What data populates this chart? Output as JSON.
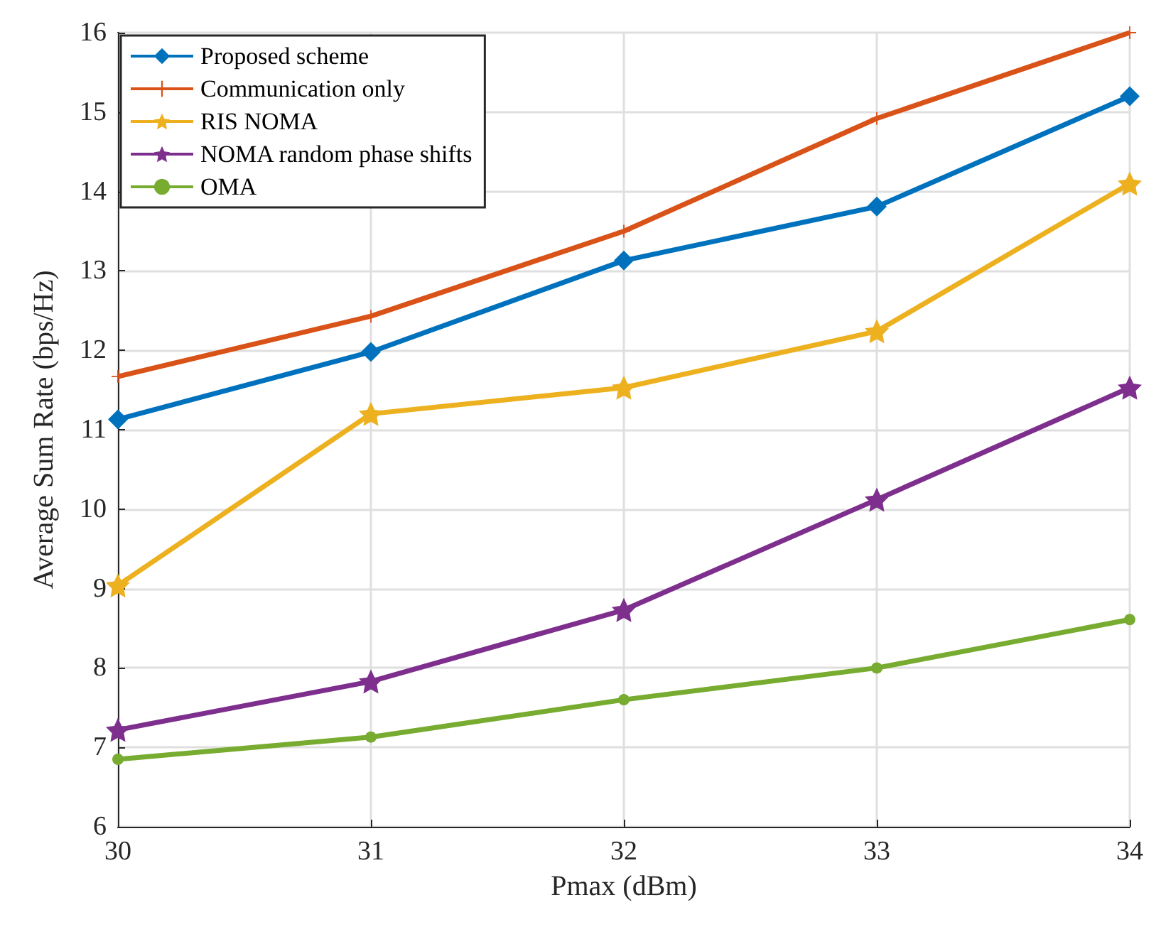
{
  "chart_data": {
    "type": "line",
    "xlabel": "Pmax (dBm)",
    "ylabel": "Average Sum Rate (bps/Hz)",
    "x": [
      30,
      31,
      32,
      33,
      34
    ],
    "xlim": [
      30,
      34
    ],
    "xticks": [
      30,
      31,
      32,
      33,
      34
    ],
    "ylim": [
      6,
      16
    ],
    "yticks": [
      6,
      7,
      8,
      9,
      10,
      11,
      12,
      13,
      14,
      15,
      16
    ],
    "grid": true,
    "legend": "top left",
    "series": [
      {
        "name": "Proposed scheme",
        "color": "#0072bd",
        "marker": "diamond",
        "values": [
          11.13,
          11.98,
          13.13,
          13.81,
          15.2
        ]
      },
      {
        "name": "Communication only",
        "color": "#d95319",
        "marker": "cross",
        "values": [
          11.67,
          12.43,
          13.5,
          14.92,
          16
        ]
      },
      {
        "name": "RIS NOMA",
        "color": "#edb120",
        "marker": "star",
        "values": [
          9.04,
          11.2,
          11.53,
          12.24,
          14.1
        ]
      },
      {
        "name": "NOMA random phase shifts",
        "color": "#7e2f8e",
        "marker": "star",
        "values": [
          7.22,
          7.83,
          8.73,
          10.12,
          11.53
        ]
      },
      {
        "name": "OMA",
        "color": "#77ac30",
        "marker": "circle",
        "values": [
          6.85,
          7.13,
          7.6,
          8.0,
          8.61
        ]
      }
    ]
  }
}
